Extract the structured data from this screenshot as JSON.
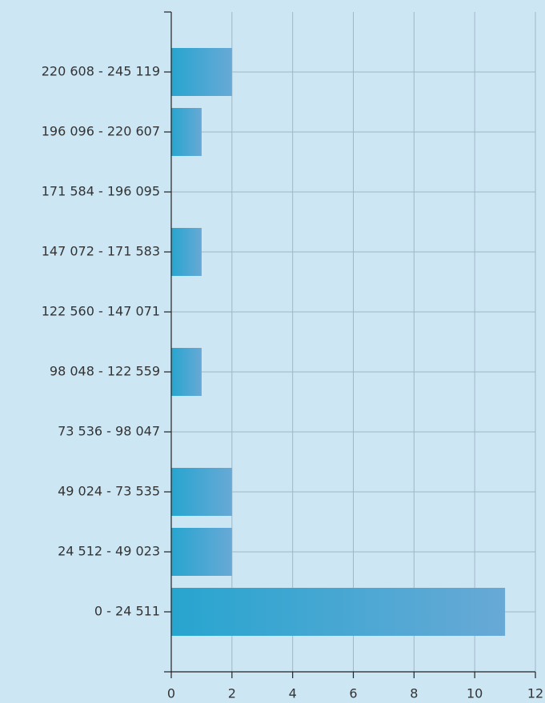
{
  "chart_data": {
    "type": "barh",
    "categories": [
      "0 - 24 511",
      "24 512 - 49 023",
      "49 024 - 73 535",
      "73 536 - 98 047",
      "98 048 - 122 559",
      "122 560 - 147 071",
      "147 072 - 171 583",
      "171 584 - 196 095",
      "196 096 - 220 607",
      "220 608 - 245 119"
    ],
    "values": [
      11,
      2,
      2,
      0,
      1,
      0,
      1,
      0,
      1,
      2
    ],
    "color": [
      "#27a5cf",
      "#68a9d6"
    ],
    "xlim": [
      0,
      12
    ],
    "xticks": [
      0,
      2,
      4,
      6,
      8,
      10,
      12
    ],
    "grid": true
  }
}
